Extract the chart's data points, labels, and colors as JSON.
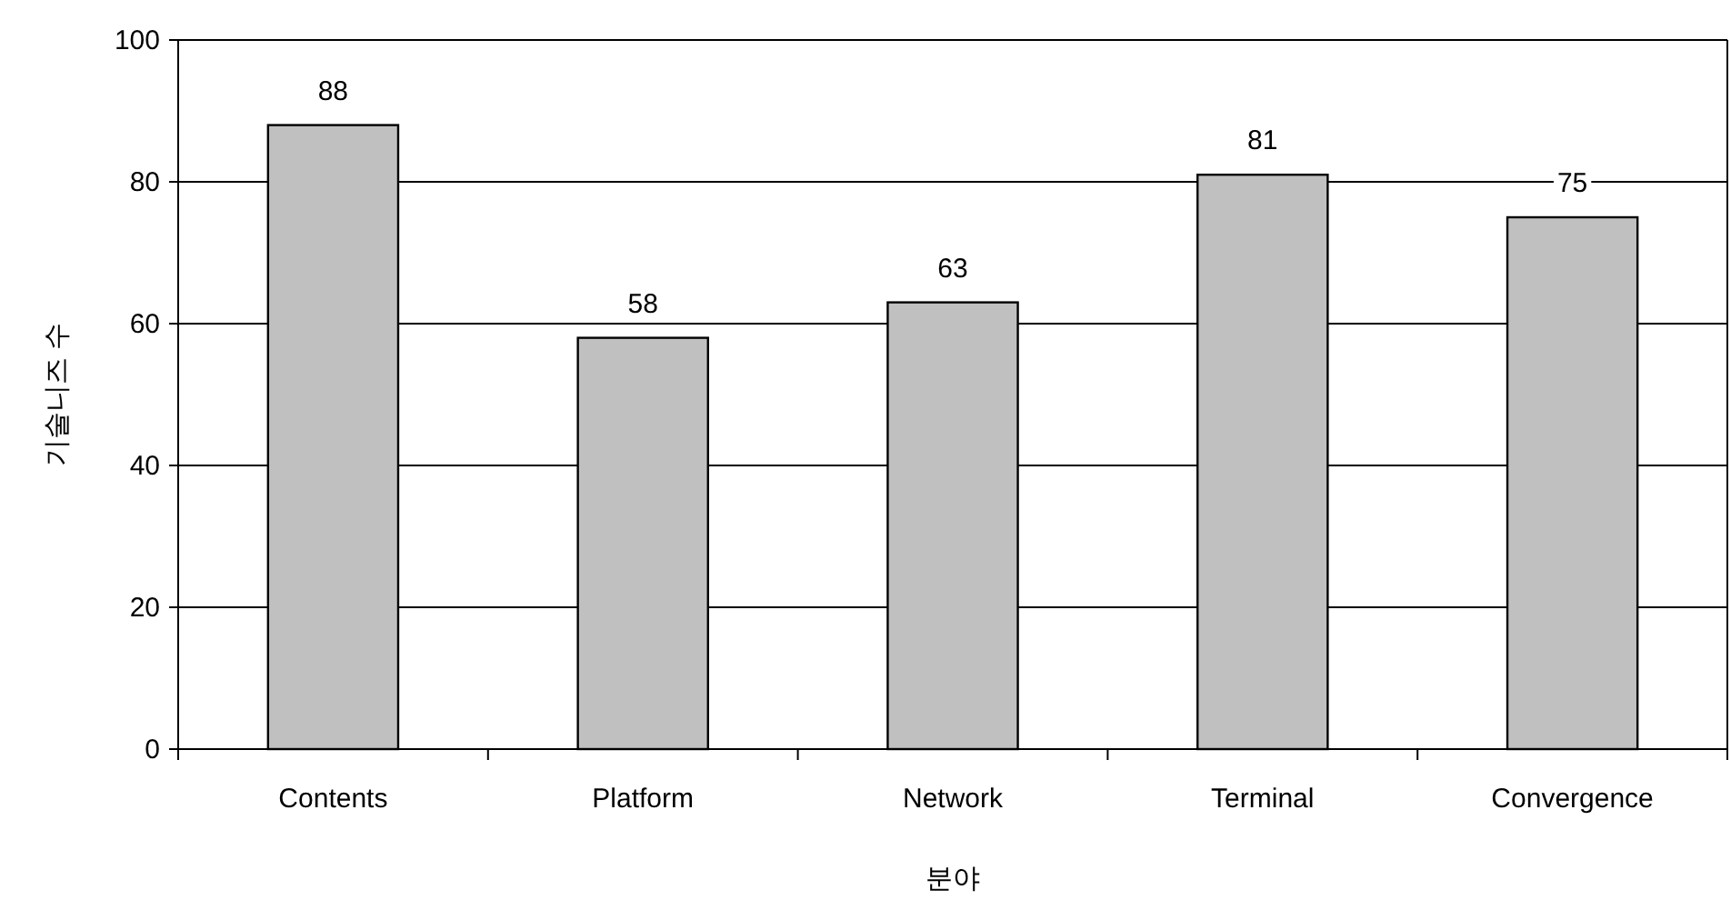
{
  "chart_data": {
    "type": "bar",
    "xlabel": "분야",
    "ylabel": "기술니즈 수",
    "categories": [
      "Contents",
      "Platform",
      "Network",
      "Terminal",
      "Convergence"
    ],
    "values": [
      88,
      58,
      63,
      81,
      75
    ],
    "color": "#c0c0c0",
    "ylim": [
      0,
      100
    ],
    "yticks": [
      0,
      20,
      40,
      60,
      80,
      100
    ],
    "grid": "y",
    "data_labels": true
  }
}
